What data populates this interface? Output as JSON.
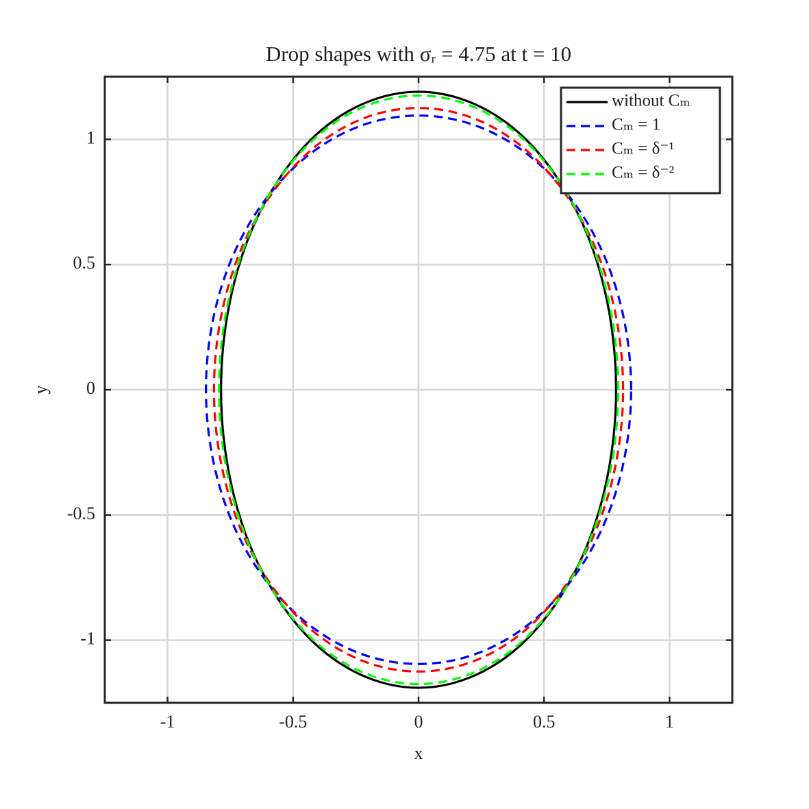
{
  "chart_data": {
    "type": "line",
    "title": "Drop shapes with σᵣ = 4.75 at t = 10",
    "x_label": "x",
    "y_label": "y",
    "xlim": [
      -1.25,
      1.25
    ],
    "ylim": [
      -1.25,
      1.25
    ],
    "xticks": [
      -1,
      -0.5,
      0,
      0.5,
      1
    ],
    "yticks": [
      -1,
      -0.5,
      0,
      0.5,
      1
    ],
    "grid": true,
    "legend": "northeast",
    "series": [
      {
        "name": "without Cₘ",
        "color": "#000000",
        "dashed": false,
        "x": [
          0.787,
          0.76,
          0.682,
          0.556,
          0.394,
          0.204,
          0,
          -0.204,
          -0.394,
          -0.556,
          -0.682,
          -0.76,
          -0.787,
          -0.76,
          -0.682,
          -0.556,
          -0.394,
          -0.204,
          0,
          0.204,
          0.394,
          0.556,
          0.682,
          0.76,
          0.787
        ],
        "y": [
          0,
          0.308,
          0.595,
          0.841,
          1.031,
          1.149,
          1.19,
          1.149,
          1.031,
          0.841,
          0.595,
          0.308,
          0,
          -0.308,
          -0.595,
          -0.841,
          -1.031,
          -1.149,
          -1.19,
          -1.149,
          -1.031,
          -0.841,
          -0.595,
          -0.308,
          0
        ]
      },
      {
        "name": "Cₘ = 1",
        "color": "#0000ff",
        "dashed": true,
        "x": [
          0.847,
          0.818,
          0.734,
          0.599,
          0.424,
          0.219,
          0,
          -0.219,
          -0.424,
          -0.599,
          -0.734,
          -0.818,
          -0.847,
          -0.818,
          -0.734,
          -0.599,
          -0.424,
          -0.219,
          0,
          0.219,
          0.424,
          0.599,
          0.734,
          0.818,
          0.847
        ],
        "y": [
          0,
          0.284,
          0.548,
          0.774,
          0.948,
          1.058,
          1.095,
          1.058,
          0.948,
          0.774,
          0.548,
          0.284,
          0,
          -0.284,
          -0.548,
          -0.774,
          -0.948,
          -1.058,
          -1.095,
          -1.058,
          -0.948,
          -0.774,
          -0.548,
          -0.284,
          0
        ]
      },
      {
        "name": "Cₘ = δ⁻¹",
        "color": "#ff0000",
        "dashed": true,
        "x": [
          0.815,
          0.787,
          0.706,
          0.576,
          0.408,
          0.211,
          0,
          -0.211,
          -0.408,
          -0.576,
          -0.706,
          -0.787,
          -0.815,
          -0.787,
          -0.706,
          -0.576,
          -0.408,
          -0.211,
          0,
          0.211,
          0.408,
          0.576,
          0.706,
          0.787,
          0.815
        ],
        "y": [
          0,
          0.291,
          0.563,
          0.795,
          0.974,
          1.087,
          1.125,
          1.087,
          0.974,
          0.795,
          0.563,
          0.291,
          0,
          -0.291,
          -0.563,
          -0.795,
          -0.974,
          -1.087,
          -1.125,
          -1.087,
          -0.974,
          -0.795,
          -0.563,
          -0.291,
          0
        ]
      },
      {
        "name": "Cₘ = δ⁻²",
        "color": "#00ff00",
        "dashed": true,
        "x": [
          0.795,
          0.768,
          0.688,
          0.562,
          0.398,
          0.206,
          0,
          -0.206,
          -0.398,
          -0.562,
          -0.688,
          -0.768,
          -0.795,
          -0.768,
          -0.688,
          -0.562,
          -0.398,
          -0.206,
          0,
          0.206,
          0.398,
          0.562,
          0.688,
          0.768,
          0.795
        ],
        "y": [
          0,
          0.304,
          0.588,
          0.831,
          1.018,
          1.135,
          1.175,
          1.135,
          1.018,
          0.831,
          0.588,
          0.304,
          0,
          -0.304,
          -0.588,
          -0.831,
          -1.018,
          -1.135,
          -1.175,
          -1.135,
          -1.018,
          -0.831,
          -0.588,
          -0.304,
          0
        ]
      }
    ]
  }
}
